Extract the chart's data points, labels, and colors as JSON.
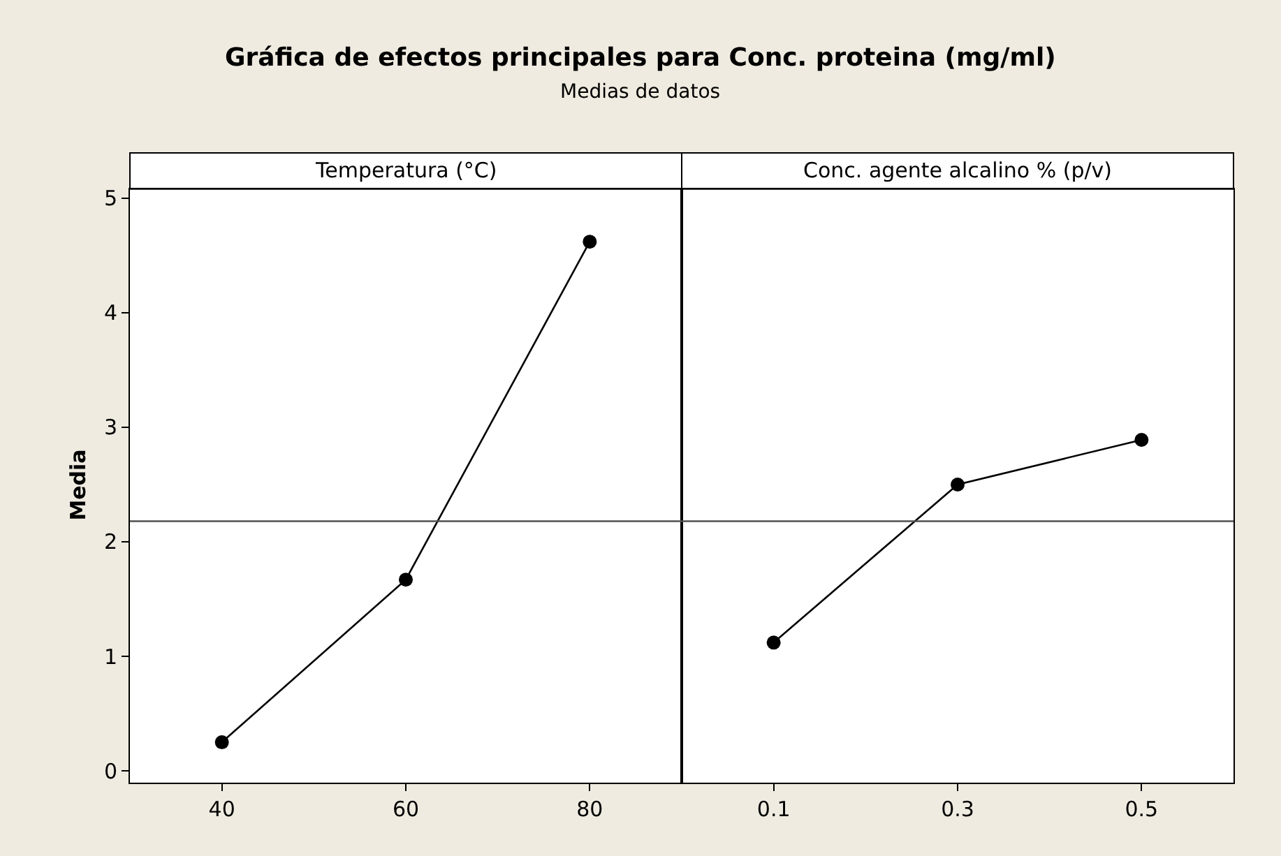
{
  "chart_data": [
    {
      "type": "line",
      "title": "Gráfica de efectos principales para Conc. proteina (mg/ml)",
      "subtitle": "Medias de datos",
      "xlabel": "Temperatura (°C)",
      "ylabel": "Media",
      "x": [
        40,
        60,
        80
      ],
      "series": [
        {
          "color": "#000000",
          "values": [
            0.25,
            1.67,
            4.62
          ]
        }
      ],
      "xlim": [
        30,
        90
      ],
      "xticks": [
        40,
        60,
        80
      ],
      "ylim": [
        -0.1,
        5.08
      ],
      "yticks": [
        0,
        1,
        2,
        3,
        4,
        5
      ],
      "ref_lines": [
        {
          "axis": "y",
          "value": 2.18,
          "color": "#505050"
        }
      ],
      "marker": "circle",
      "line_style": "solid",
      "grid": false
    },
    {
      "type": "line",
      "xlabel": "Conc. agente alcalino % (p/v)",
      "x": [
        0.1,
        0.3,
        0.5
      ],
      "series": [
        {
          "color": "#000000",
          "values": [
            1.12,
            2.5,
            2.89
          ]
        }
      ],
      "xlim": [
        0,
        0.6
      ],
      "xticks": [
        0.1,
        0.3,
        0.5
      ],
      "ylim": [
        -0.1,
        5.08
      ],
      "yticks": [
        0,
        1,
        2,
        3,
        4,
        5
      ],
      "ref_lines": [
        {
          "axis": "y",
          "value": 2.18,
          "color": "#505050"
        }
      ],
      "marker": "circle",
      "line_style": "solid",
      "grid": false,
      "tick_labels": "x"
    }
  ]
}
